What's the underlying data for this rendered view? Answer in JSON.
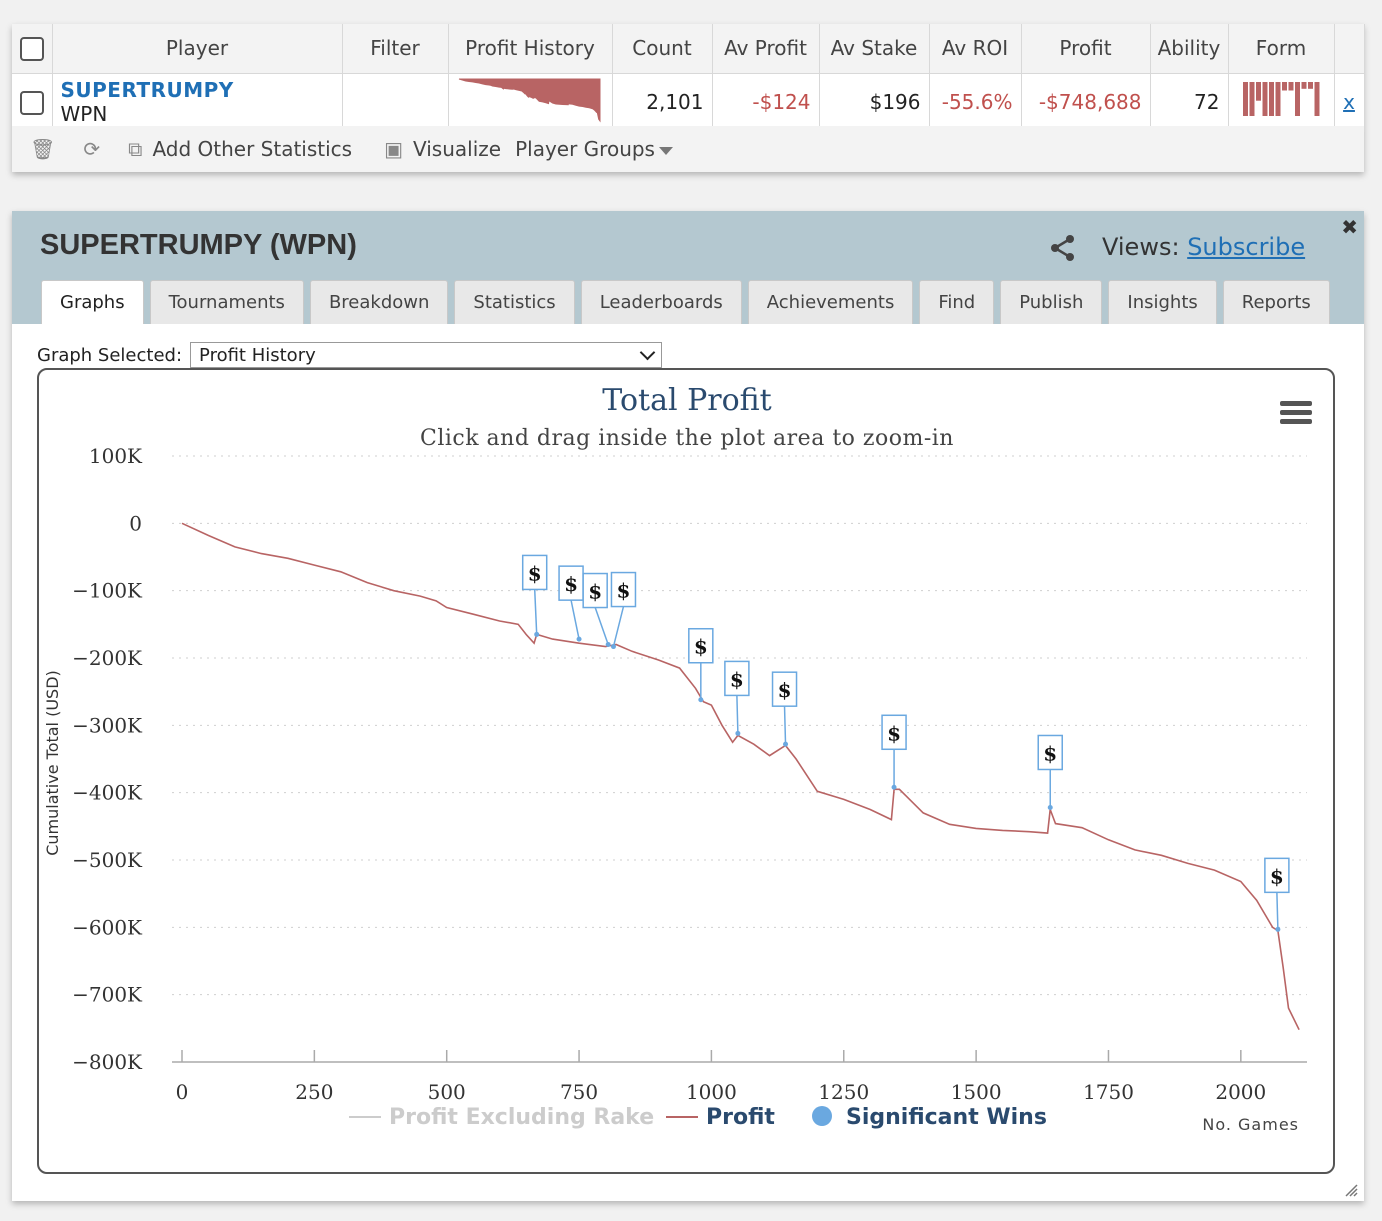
{
  "stats": {
    "columns": [
      "Player",
      "Filter",
      "Profit History",
      "Count",
      "Av Profit",
      "Av Stake",
      "Av ROI",
      "Profit",
      "Ability",
      "Form"
    ],
    "row": {
      "player": "SUPERTRUMPY",
      "network": "WPN",
      "filter": "",
      "count": "2,101",
      "av_profit": "-$124",
      "av_stake": "$196",
      "av_roi": "-55.6%",
      "profit": "-$748,688",
      "ability": "72",
      "remove": "x"
    },
    "toolbar": {
      "add_stats": "Add Other Statistics",
      "visualize": "Visualize",
      "player_groups": "Player Groups"
    },
    "form_levels": [
      1.0,
      1.0,
      0.55,
      1.0,
      1.0,
      1.0,
      0.25,
      0.25,
      1.0,
      0.2,
      0.2,
      1.0
    ]
  },
  "panel": {
    "title": "SUPERTRUMPY (WPN)",
    "views_label": "Views:",
    "subscribe": "Subscribe",
    "tabs": [
      "Graphs",
      "Tournaments",
      "Breakdown",
      "Statistics",
      "Leaderboards",
      "Achievements",
      "Find",
      "Publish",
      "Insights",
      "Reports"
    ],
    "active_tab": "Graphs",
    "graph_selected_label": "Graph Selected:",
    "graph_selected_value": "Profit History"
  },
  "colors": {
    "profit_line": "#b86464",
    "marker": "#6aa8e0",
    "accent": "#1f6fb5",
    "negative": "#c0504d"
  },
  "chart_data": {
    "type": "line",
    "title": "Total Profit",
    "subtitle": "Click and drag inside the plot area to zoom-in",
    "xlabel": "No. Games",
    "ylabel": "Cumulative Total (USD)",
    "xlim": [
      0,
      2125
    ],
    "ylim": [
      -800000,
      100000
    ],
    "x_ticks": [
      0,
      250,
      500,
      750,
      1000,
      1250,
      1500,
      1750,
      2000
    ],
    "y_ticks": [
      100000,
      0,
      -100000,
      -200000,
      -300000,
      -400000,
      -500000,
      -600000,
      -700000,
      -800000
    ],
    "y_tick_labels": [
      "100K",
      "0",
      "−100K",
      "−200K",
      "−300K",
      "−400K",
      "−500K",
      "−600K",
      "−700K",
      "−800K"
    ],
    "legend": [
      "Profit Excluding Rake",
      "Profit",
      "Significant Wins"
    ],
    "legend_placement": "bottom",
    "grid": true,
    "series": [
      {
        "name": "Profit",
        "x": [
          0,
          50,
          100,
          150,
          200,
          250,
          300,
          350,
          400,
          450,
          480,
          500,
          550,
          600,
          635,
          650,
          665,
          670,
          700,
          750,
          800,
          820,
          850,
          900,
          940,
          970,
          985,
          1000,
          1020,
          1040,
          1050,
          1080,
          1110,
          1140,
          1160,
          1200,
          1250,
          1300,
          1340,
          1345,
          1355,
          1400,
          1450,
          1500,
          1550,
          1600,
          1635,
          1640,
          1650,
          1700,
          1750,
          1800,
          1850,
          1900,
          1950,
          2000,
          2030,
          2060,
          2070,
          2080,
          2090,
          2110
        ],
        "y": [
          0,
          -18000,
          -35000,
          -45000,
          -52000,
          -62000,
          -72000,
          -88000,
          -100000,
          -108000,
          -115000,
          -125000,
          -135000,
          -145000,
          -150000,
          -165000,
          -178000,
          -165000,
          -172000,
          -178000,
          -183000,
          -180000,
          -190000,
          -203000,
          -215000,
          -245000,
          -265000,
          -270000,
          -300000,
          -325000,
          -315000,
          -328000,
          -345000,
          -330000,
          -350000,
          -398000,
          -410000,
          -425000,
          -440000,
          -395000,
          -395000,
          -430000,
          -447000,
          -453000,
          -456000,
          -458000,
          -460000,
          -425000,
          -446000,
          -452000,
          -470000,
          -485000,
          -493000,
          -505000,
          -515000,
          -532000,
          -560000,
          -600000,
          -605000,
          -660000,
          -720000,
          -752000
        ]
      },
      {
        "name": "Significant Wins",
        "x": [
          670,
          750,
          805,
          815,
          980,
          1050,
          1140,
          1345,
          1640,
          2070
        ],
        "y": [
          -165000,
          -172000,
          -180000,
          -183000,
          -262000,
          -312000,
          -328000,
          -392000,
          -422000,
          -603000
        ]
      }
    ],
    "marker_label": "$"
  }
}
